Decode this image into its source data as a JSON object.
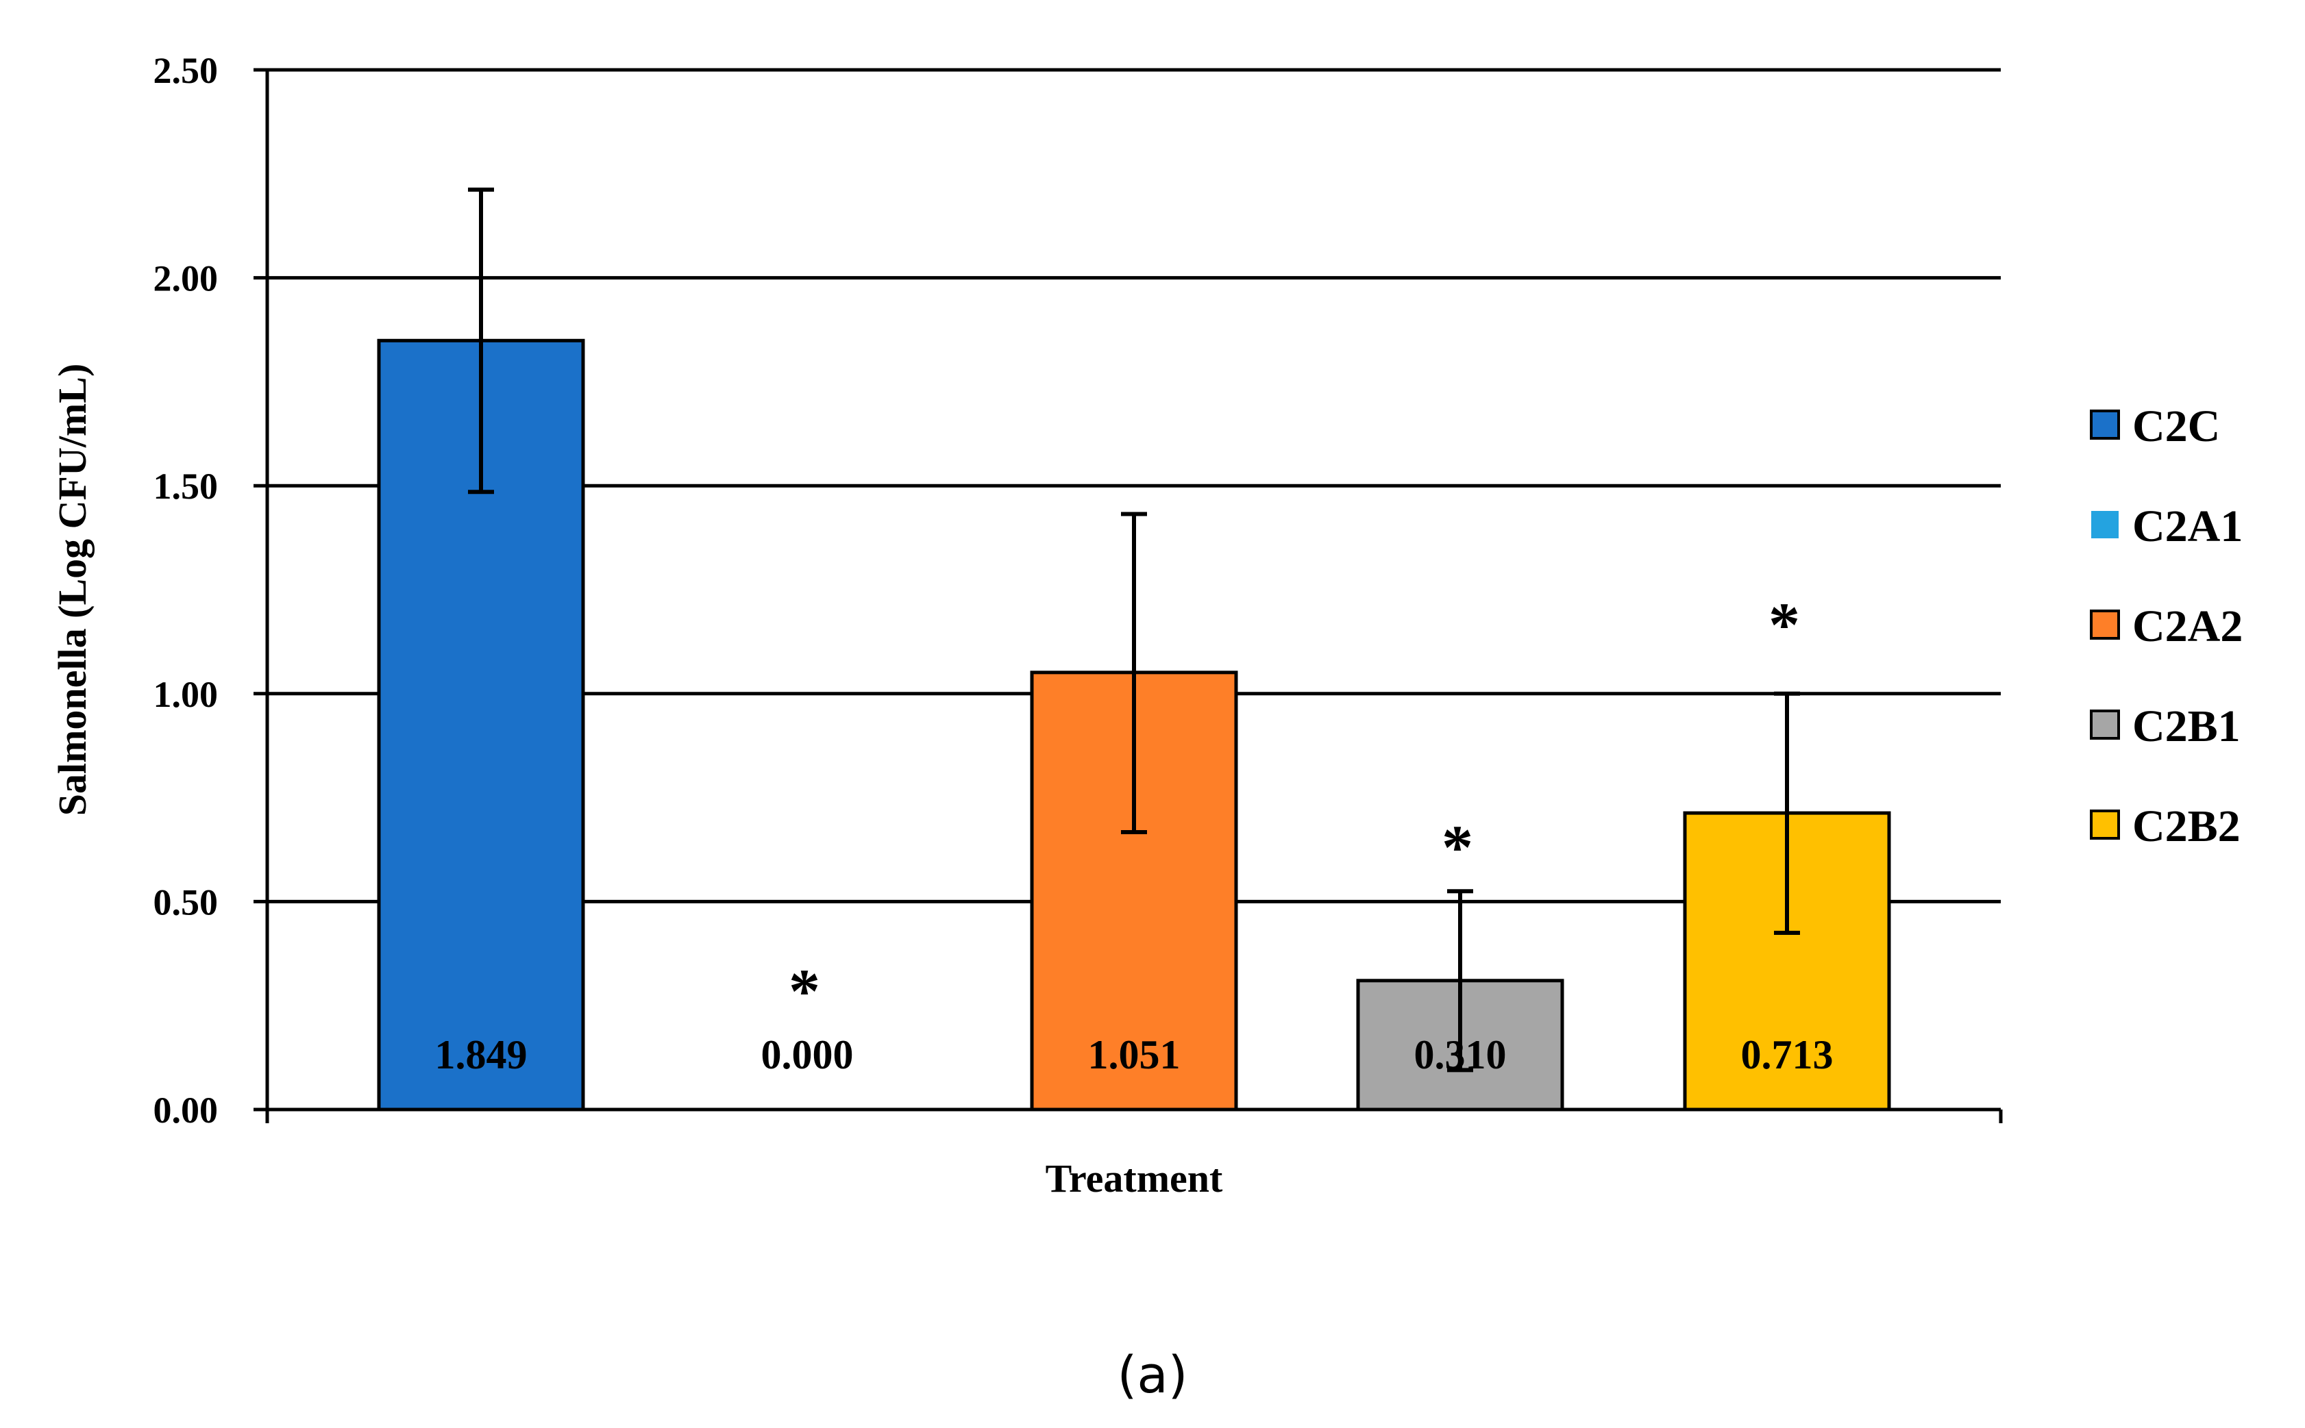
{
  "chart_data": {
    "type": "bar",
    "ylabel": "Salmonella (Log CFU/mL)",
    "xlabel": "Treatment",
    "ylim": [
      0,
      2.5
    ],
    "yticks": [
      0,
      0.5,
      1.0,
      1.5,
      2.0,
      2.5
    ],
    "ytick_labels": [
      "0.00",
      "0.50",
      "1.00",
      "1.50",
      "2.00",
      "2.50"
    ],
    "grid": true,
    "legend_position": "right",
    "series": [
      {
        "name": "C2C",
        "value": 1.849,
        "value_label": "1.849",
        "error_low": 1.485,
        "error_high": 2.212,
        "significant": false,
        "color": "#1B71C9"
      },
      {
        "name": "C2A1",
        "value": 0.0,
        "value_label": "0.000",
        "error_low": null,
        "error_high": null,
        "significant": true,
        "color": "#24A3E0"
      },
      {
        "name": "C2A2",
        "value": 1.051,
        "value_label": "1.051",
        "error_low": 0.667,
        "error_high": 1.432,
        "significant": false,
        "color": "#FE7F28"
      },
      {
        "name": "C2B1",
        "value": 0.31,
        "value_label": "0.310",
        "error_low": 0.095,
        "error_high": 0.525,
        "significant": true,
        "color": "#A6A6A6"
      },
      {
        "name": "C2B2",
        "value": 0.713,
        "value_label": "0.713",
        "error_low": 0.425,
        "error_high": 1.0,
        "significant": true,
        "color": "#FFC000"
      }
    ],
    "significance_marker": "*"
  },
  "caption": "(a)"
}
